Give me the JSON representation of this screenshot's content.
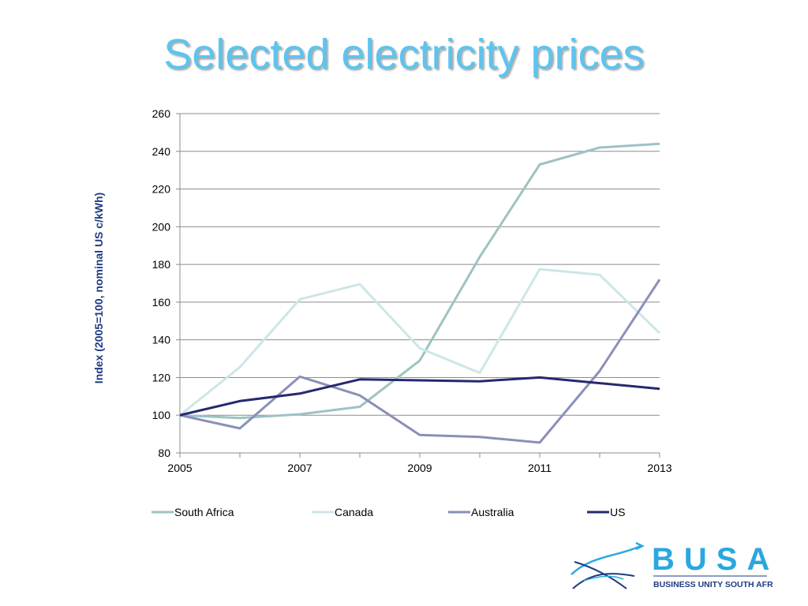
{
  "slide": {
    "title": "Selected electricity prices"
  },
  "colors": {
    "title": "#5cc4ef",
    "axis_title": "#1f3a82",
    "grid": "#8c8c8c",
    "logo_blue": "#2aa7df",
    "logo_dark": "#1f3a82"
  },
  "logo": {
    "icon": "fish-wave-logo-icon",
    "name": "BUSA",
    "subtitle": "BUSINESS UNITY SOUTH AFRICA"
  },
  "chart_data": {
    "type": "line",
    "title": "",
    "xlabel": "",
    "ylabel": "Index (2005=100, nominal US c/kWh)",
    "x": [
      2005,
      2006,
      2007,
      2008,
      2009,
      2010,
      2011,
      2012,
      2013
    ],
    "xticks": [
      "2005",
      "2007",
      "2009",
      "2011",
      "2013"
    ],
    "yticks": [
      "80",
      "100",
      "120",
      "140",
      "160",
      "180",
      "200",
      "220",
      "240",
      "260"
    ],
    "xlim": [
      2005,
      2013
    ],
    "ylim": [
      80,
      260
    ],
    "grid": true,
    "legend_position": "bottom",
    "series": [
      {
        "name": "South Africa",
        "color": "#9dc3c3",
        "values": [
          100,
          98.5,
          100.5,
          104.5,
          129,
          184,
          233,
          242,
          244
        ]
      },
      {
        "name": "Canada",
        "color": "#cde6e8",
        "values": [
          100,
          125.5,
          161.5,
          169.5,
          135.5,
          122.5,
          177.5,
          174.5,
          143.5
        ]
      },
      {
        "name": "Australia",
        "color": "#8a8fb9",
        "values": [
          100,
          93,
          120.5,
          110.5,
          89.5,
          88.5,
          85.5,
          123.5,
          172
        ]
      },
      {
        "name": "US",
        "color": "#27286f",
        "values": [
          100,
          107.5,
          111.5,
          119,
          118.5,
          118,
          120,
          117,
          114
        ]
      }
    ]
  }
}
